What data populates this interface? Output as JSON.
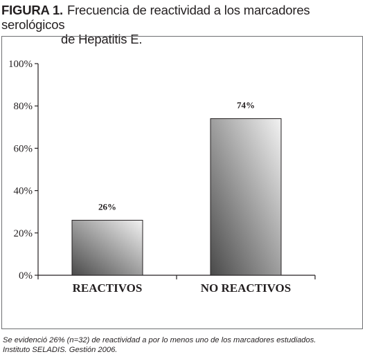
{
  "figure": {
    "label": "FIGURA 1.",
    "title_line1": "Frecuencia de reactividad a los marcadores serológicos",
    "title_line2": "de Hepatitis E."
  },
  "chart_data": {
    "type": "bar",
    "categories": [
      "REACTIVOS",
      "NO REACTIVOS"
    ],
    "values": [
      26,
      74
    ],
    "data_labels": [
      "26%",
      "74%"
    ],
    "ylim": [
      0,
      100
    ],
    "yticks": [
      0,
      20,
      40,
      60,
      80,
      100
    ],
    "ytick_labels": [
      "0%",
      "20%",
      "40%",
      "60%",
      "80%",
      "100%"
    ],
    "grid": false,
    "legend": "none",
    "colors": {
      "bar_dark": "#4a4a4a",
      "bar_light": "#f2f2f2",
      "axis": "#231f20"
    }
  },
  "footnote": {
    "line1": "Se evidenció 26% (n=32) de reactividad a por lo menos uno de los marcadores estudiados.",
    "line2": "Instituto SELADIS. Gestión 2006."
  }
}
